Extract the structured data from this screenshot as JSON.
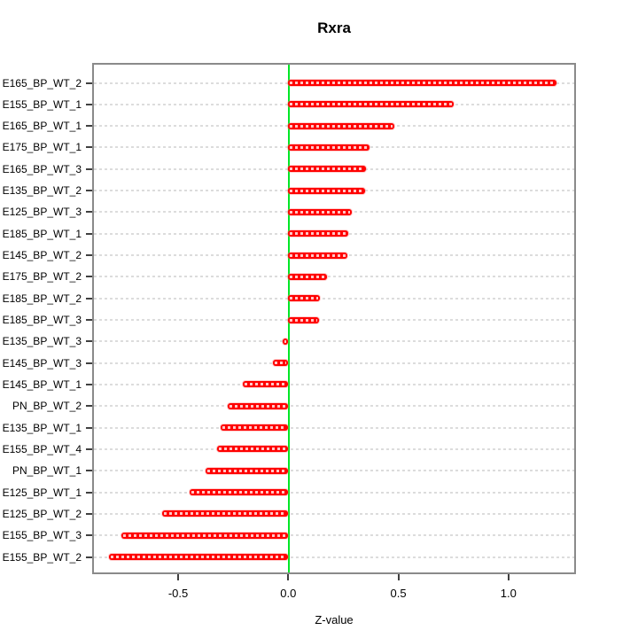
{
  "title": "Rxra",
  "chart_data": {
    "type": "bar",
    "orientation": "horizontal",
    "title": "Rxra",
    "xlabel": "Z-value",
    "categories": [
      "E165_BP_WT_2",
      "E155_BP_WT_1",
      "E165_BP_WT_1",
      "E175_BP_WT_1",
      "E165_BP_WT_3",
      "E135_BP_WT_2",
      "E125_BP_WT_3",
      "E185_BP_WT_1",
      "E145_BP_WT_2",
      "E175_BP_WT_2",
      "E185_BP_WT_2",
      "E185_BP_WT_3",
      "E135_BP_WT_3",
      "E145_BP_WT_3",
      "E145_BP_WT_1",
      "PN_BP_WT_2",
      "E135_BP_WT_1",
      "E155_BP_WT_4",
      "PN_BP_WT_1",
      "E125_BP_WT_1",
      "E125_BP_WT_2",
      "E155_BP_WT_3",
      "E155_BP_WT_2"
    ],
    "values": [
      1.22,
      0.75,
      0.48,
      0.37,
      0.353,
      0.348,
      0.29,
      0.273,
      0.267,
      0.177,
      0.145,
      0.138,
      -0.024,
      -0.07,
      -0.205,
      -0.276,
      -0.307,
      -0.323,
      -0.377,
      -0.447,
      -0.573,
      -0.757,
      -0.813
    ],
    "x_ticks": [
      -0.5,
      0.0,
      0.5,
      1.0
    ],
    "x_tick_labels": [
      "-0.5",
      "0.0",
      "0.5",
      "1.0"
    ],
    "xlim": [
      -0.89,
      1.3
    ],
    "grid": "dotted-horizontal-per-row",
    "legend": "none",
    "bar_color": "#ff0000",
    "zero_line_color": "#00e626",
    "grid_color": "#dcdcdc",
    "box_color": "#8a8a8a"
  }
}
